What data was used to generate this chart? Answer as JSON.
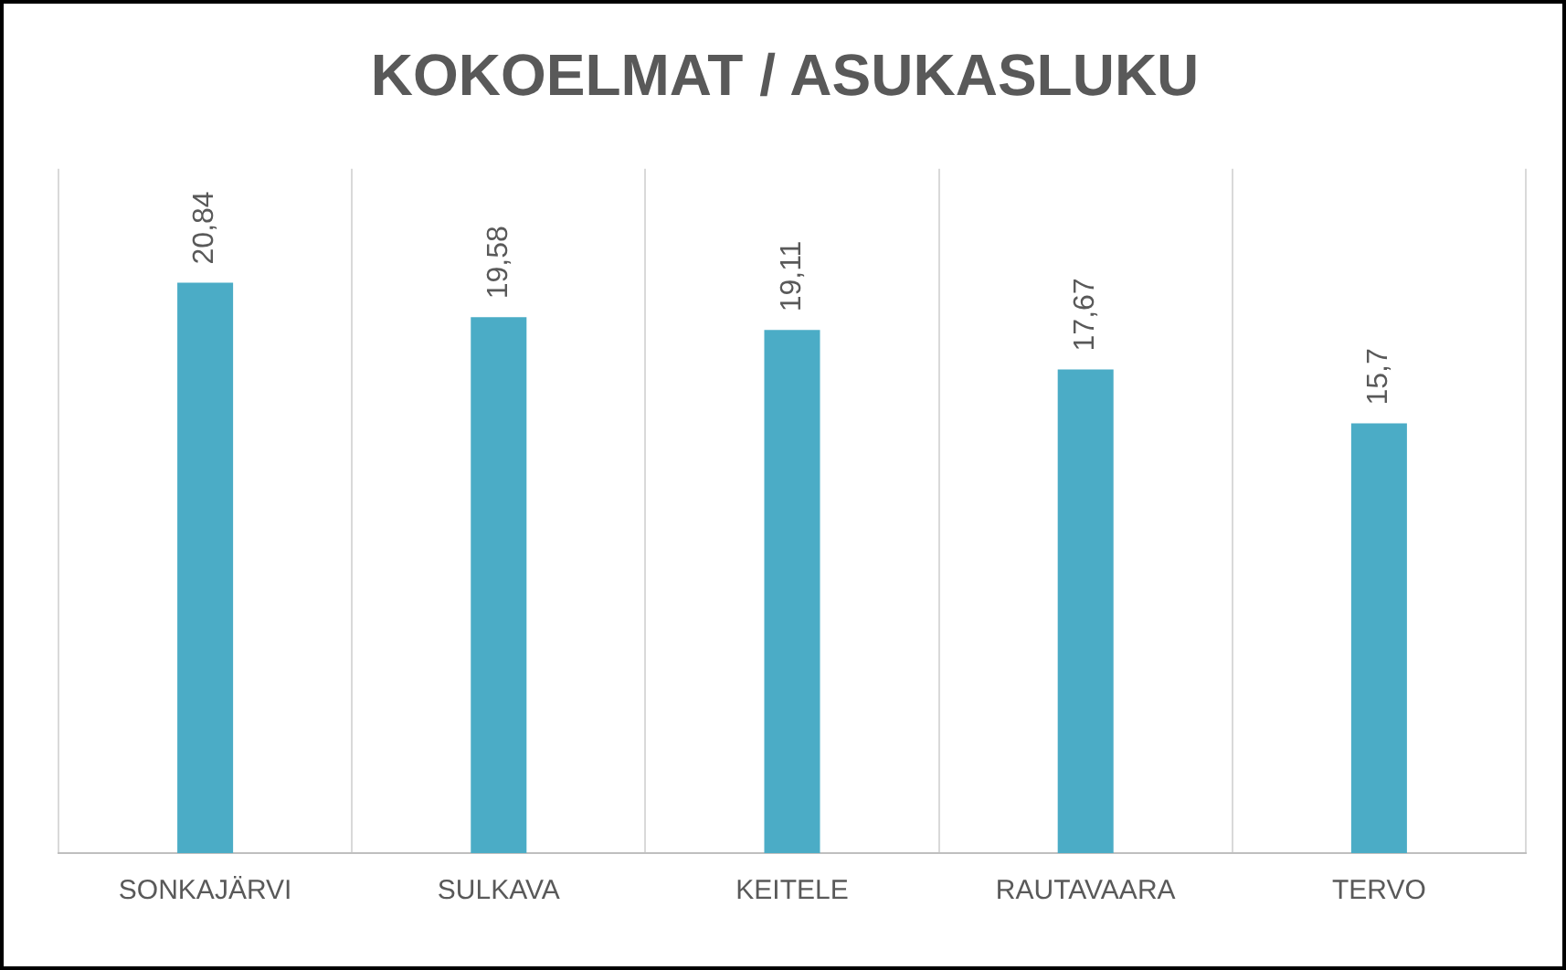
{
  "chart_data": {
    "type": "bar",
    "title": "KOKOELMAT / ASUKASLUKU",
    "categories": [
      "SONKAJÄRVI",
      "SULKAVA",
      "KEITELE",
      "RAUTAVAARA",
      "TERVO"
    ],
    "values": [
      20.84,
      19.58,
      19.11,
      17.67,
      15.7
    ],
    "value_labels": [
      "20,84",
      "19,58",
      "19,11",
      "17,67",
      "15,7"
    ],
    "color": "#4bacc6",
    "ylim": [
      0,
      25
    ],
    "grid": "x",
    "tick_labels": "x"
  }
}
